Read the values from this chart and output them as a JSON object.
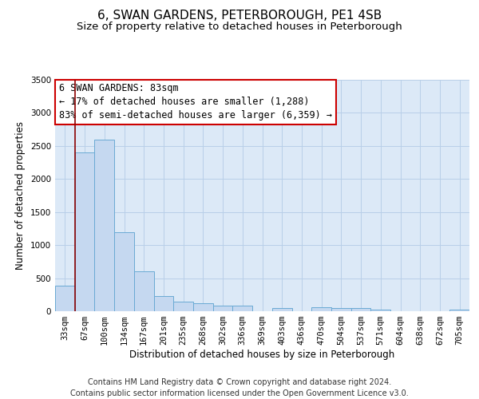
{
  "title": "6, SWAN GARDENS, PETERBOROUGH, PE1 4SB",
  "subtitle": "Size of property relative to detached houses in Peterborough",
  "xlabel": "Distribution of detached houses by size in Peterborough",
  "ylabel": "Number of detached properties",
  "categories": [
    "33sqm",
    "67sqm",
    "100sqm",
    "134sqm",
    "167sqm",
    "201sqm",
    "235sqm",
    "268sqm",
    "302sqm",
    "336sqm",
    "369sqm",
    "403sqm",
    "436sqm",
    "470sqm",
    "504sqm",
    "537sqm",
    "571sqm",
    "604sqm",
    "638sqm",
    "672sqm",
    "705sqm"
  ],
  "values": [
    390,
    2400,
    2600,
    1200,
    600,
    230,
    145,
    115,
    90,
    80,
    0,
    50,
    0,
    55,
    50,
    50,
    30,
    0,
    0,
    0,
    30
  ],
  "bar_color": "#c5d8f0",
  "bar_edge_color": "#6aaad4",
  "background_color": "#dce9f7",
  "grid_color": "#b8cfe8",
  "annotation_text": "6 SWAN GARDENS: 83sqm\n← 17% of detached houses are smaller (1,288)\n83% of semi-detached houses are larger (6,359) →",
  "vline_color": "#8b0000",
  "ylim": [
    0,
    3500
  ],
  "yticks": [
    0,
    500,
    1000,
    1500,
    2000,
    2500,
    3000,
    3500
  ],
  "footer_line1": "Contains HM Land Registry data © Crown copyright and database right 2024.",
  "footer_line2": "Contains public sector information licensed under the Open Government Licence v3.0.",
  "title_fontsize": 11,
  "subtitle_fontsize": 9.5,
  "annotation_fontsize": 8.5,
  "axis_label_fontsize": 8.5,
  "tick_fontsize": 7.5,
  "footer_fontsize": 7
}
